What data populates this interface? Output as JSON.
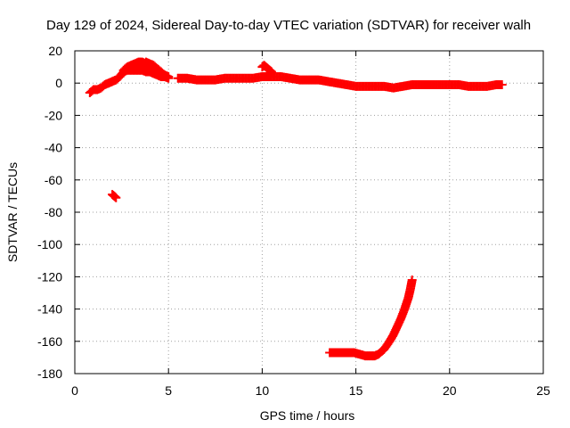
{
  "chart_data": {
    "type": "scatter",
    "title": "Day 129 of 2024, Sidereal Day-to-day VTEC variation (SDTVAR) for receiver walh",
    "xlabel": "GPS time / hours",
    "ylabel": "SDTVAR / TECUs",
    "xlim": [
      0,
      25
    ],
    "ylim": [
      -180,
      20
    ],
    "xticks": [
      0,
      5,
      10,
      15,
      20,
      25
    ],
    "yticks": [
      20,
      0,
      -20,
      -40,
      -60,
      -80,
      -100,
      -120,
      -140,
      -160,
      -180
    ],
    "grid": true,
    "marker": "plus",
    "series": [
      {
        "name": "SDTVAR",
        "color": "#ff0000",
        "segments": [
          {
            "x": [
              0.8,
              1.0,
              1.2,
              1.4,
              1.6,
              1.8,
              2.0,
              2.2,
              2.4,
              2.6,
              2.8,
              3.0,
              3.2,
              3.4,
              3.6,
              3.8,
              4.0,
              4.2,
              4.4,
              4.6,
              4.8,
              5.0
            ],
            "y": [
              -6,
              -4,
              -4,
              -3,
              -1,
              0,
              1,
              2,
              4,
              7,
              8,
              8,
              8,
              8,
              8,
              7,
              7,
              6,
              5,
              4,
              4,
              3
            ]
          },
          {
            "x": [
              2.6,
              2.8,
              3.0,
              3.2,
              3.4,
              3.6,
              3.8,
              4.0,
              4.2
            ],
            "y": [
              8,
              10,
              11,
              12,
              13,
              13,
              12,
              11,
              10
            ]
          },
          {
            "x": [
              3.8,
              4.0,
              4.2,
              4.4,
              4.6,
              4.8,
              5.0
            ],
            "y": [
              13,
              12,
              11,
              9,
              7,
              5,
              4
            ]
          },
          {
            "x": [
              5.5,
              6.0,
              6.5,
              7.0,
              7.5,
              8.0,
              8.5,
              9.0,
              9.5,
              10.0,
              10.2,
              10.5,
              11.0,
              11.5,
              12.0,
              12.5,
              13.0,
              13.5,
              14.0,
              14.5,
              15.0,
              15.5,
              16.0,
              16.5,
              17.0,
              17.5,
              18.0,
              18.5,
              19.0,
              19.5,
              20.0,
              20.5,
              21.0,
              21.5,
              22.0,
              22.5,
              22.8
            ],
            "y": [
              3,
              3,
              2,
              2,
              2,
              3,
              3,
              3,
              3,
              4,
              4,
              4,
              4,
              3,
              2,
              2,
              2,
              1,
              0,
              -1,
              -2,
              -2,
              -2,
              -2,
              -3,
              -2,
              -1,
              -1,
              -1,
              -1,
              -1,
              -1,
              -2,
              -2,
              -2,
              -1,
              -1
            ]
          },
          {
            "x": [
              10.0,
              10.1,
              10.2,
              10.3,
              10.4,
              10.5
            ],
            "y": [
              10,
              11,
              10,
              9,
              8,
              7
            ]
          },
          {
            "x": [
              2.0,
              2.1,
              2.2
            ],
            "y": [
              -69,
              -70,
              -71
            ]
          },
          {
            "x": [
              13.6,
              13.8,
              14.0,
              14.3,
              14.6,
              14.9,
              15.2,
              15.5,
              15.8,
              16.0,
              16.2,
              16.5,
              16.8,
              17.0,
              17.2,
              17.4,
              17.6,
              17.8,
              17.9,
              18.0
            ],
            "y": [
              -167,
              -167,
              -167,
              -167,
              -167,
              -167,
              -168,
              -169,
              -169,
              -169,
              -168,
              -165,
              -160,
              -156,
              -151,
              -146,
              -140,
              -133,
              -128,
              -122
            ]
          }
        ]
      }
    ]
  }
}
